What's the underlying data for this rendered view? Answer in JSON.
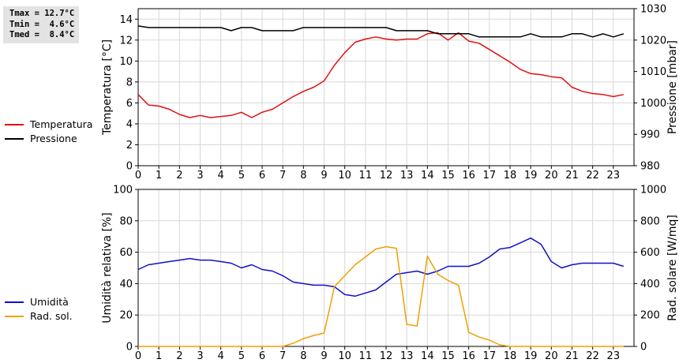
{
  "stats": [
    {
      "label": "Tmax =",
      "value": "12.7°C"
    },
    {
      "label": "Tmin =",
      "value": " 4.6°C"
    },
    {
      "label": "Tmed =",
      "value": " 8.4°C"
    }
  ],
  "colors": {
    "temperature": "#e01010",
    "pressure": "#000000",
    "humidity": "#1010c8",
    "solar": "#f0a000",
    "grid": "#d8d8d8"
  },
  "chart_data": [
    {
      "type": "line",
      "xlim": [
        0,
        24
      ],
      "x_ticks": [
        "0",
        "1",
        "2",
        "3",
        "4",
        "5",
        "6",
        "7",
        "8",
        "9",
        "10",
        "11",
        "12",
        "13",
        "14",
        "15",
        "16",
        "17",
        "18",
        "19",
        "20",
        "21",
        "22",
        "23"
      ],
      "ylabel_left": "Temperatura [°C]",
      "ylim_left": [
        0,
        15
      ],
      "yticks_left": [
        "0",
        "2",
        "4",
        "6",
        "8",
        "10",
        "12",
        "14"
      ],
      "ylabel_right": "Pressione [mbar]",
      "ylim_right": [
        980,
        1030
      ],
      "yticks_right": [
        "980",
        "990",
        "1000",
        "1010",
        "1020",
        "1030"
      ],
      "grid": true,
      "legend_placement": "left",
      "series": [
        {
          "name": "Temperatura",
          "axis": "left",
          "color": "#e01010",
          "x": [
            0,
            0.5,
            1,
            1.5,
            2,
            2.5,
            3,
            3.5,
            4,
            4.5,
            5,
            5.5,
            6,
            6.5,
            7,
            7.5,
            8,
            8.5,
            9,
            9.5,
            10,
            10.5,
            11,
            11.5,
            12,
            12.5,
            13,
            13.5,
            14,
            14.5,
            15,
            15.5,
            16,
            16.5,
            17,
            17.5,
            18,
            18.5,
            19,
            19.5,
            20,
            20.5,
            21,
            21.5,
            22,
            22.5,
            23,
            23.5
          ],
          "y": [
            6.8,
            5.8,
            5.7,
            5.4,
            4.9,
            4.6,
            4.8,
            4.6,
            4.7,
            4.8,
            5.1,
            4.6,
            5.1,
            5.4,
            6.0,
            6.6,
            7.1,
            7.5,
            8.1,
            9.6,
            10.8,
            11.8,
            12.1,
            12.3,
            12.1,
            12.0,
            12.1,
            12.1,
            12.6,
            12.7,
            12.0,
            12.7,
            11.9,
            11.7,
            11.1,
            10.5,
            9.9,
            9.2,
            8.8,
            8.7,
            8.5,
            8.4,
            7.5,
            7.1,
            6.9,
            6.8,
            6.6,
            6.8
          ]
        },
        {
          "name": "Pressione",
          "axis": "right",
          "color": "#000000",
          "x": [
            0,
            0.5,
            1,
            1.5,
            2,
            2.5,
            3,
            3.5,
            4,
            4.5,
            5,
            5.5,
            6,
            6.5,
            7,
            7.5,
            8,
            8.5,
            9,
            9.5,
            10,
            10.5,
            11,
            11.5,
            12,
            12.5,
            13,
            13.5,
            14,
            14.5,
            15,
            15.5,
            16,
            16.5,
            17,
            17.5,
            18,
            18.5,
            19,
            19.5,
            20,
            20.5,
            21,
            21.5,
            22,
            22.5,
            23,
            23.5
          ],
          "y": [
            1024.5,
            1024,
            1024,
            1024,
            1024,
            1024,
            1024,
            1024,
            1024,
            1023,
            1024,
            1024,
            1023,
            1023,
            1023,
            1023,
            1024,
            1024,
            1024,
            1024,
            1024,
            1024,
            1024,
            1024,
            1024,
            1023,
            1023,
            1023,
            1023,
            1022,
            1022,
            1022,
            1022,
            1021,
            1021,
            1021,
            1021,
            1021,
            1022,
            1021,
            1021,
            1021,
            1022,
            1022,
            1021,
            1022,
            1021,
            1022
          ]
        }
      ]
    },
    {
      "type": "line",
      "xlim": [
        0,
        24
      ],
      "x_ticks": [
        "0",
        "1",
        "2",
        "3",
        "4",
        "5",
        "6",
        "7",
        "8",
        "9",
        "10",
        "11",
        "12",
        "13",
        "14",
        "15",
        "16",
        "17",
        "18",
        "19",
        "20",
        "21",
        "22",
        "23"
      ],
      "ylabel_left": "Umidità relativa [%]",
      "ylim_left": [
        0,
        100
      ],
      "yticks_left": [
        "0",
        "20",
        "40",
        "60",
        "80",
        "100"
      ],
      "ylabel_right": "Rad. solare [W/mq]",
      "ylim_right": [
        0,
        1000
      ],
      "yticks_right": [
        "0",
        "200",
        "400",
        "600",
        "800",
        "1000"
      ],
      "grid": true,
      "legend_placement": "left",
      "series": [
        {
          "name": "Umidità",
          "axis": "left",
          "color": "#1010c8",
          "x": [
            0,
            0.5,
            1,
            1.5,
            2,
            2.5,
            3,
            3.5,
            4,
            4.5,
            5,
            5.5,
            6,
            6.5,
            7,
            7.5,
            8,
            8.5,
            9,
            9.5,
            10,
            10.5,
            11,
            11.5,
            12,
            12.5,
            13,
            13.5,
            14,
            14.5,
            15,
            15.5,
            16,
            16.5,
            17,
            17.5,
            18,
            18.5,
            19,
            19.5,
            20,
            20.5,
            21,
            21.5,
            22,
            22.5,
            23,
            23.5
          ],
          "y": [
            49,
            52,
            53,
            54,
            55,
            56,
            55,
            55,
            54,
            53,
            50,
            52,
            49,
            48,
            45,
            41,
            40,
            39,
            39,
            38,
            33,
            32,
            34,
            36,
            41,
            46,
            47,
            48,
            46,
            48,
            51,
            51,
            51,
            53,
            57,
            62,
            63,
            66,
            69,
            65,
            54,
            50,
            52,
            53,
            53,
            53,
            53,
            51
          ]
        },
        {
          "name": "Rad. sol.",
          "axis": "right",
          "color": "#f0a000",
          "x": [
            0,
            7,
            7.5,
            8,
            8.5,
            9,
            9.5,
            10,
            10.5,
            11,
            11.5,
            12,
            12.5,
            13,
            13.5,
            14,
            14.5,
            15,
            15.5,
            16,
            16.5,
            17,
            17.5,
            18,
            23.5
          ],
          "y": [
            0,
            0,
            20,
            50,
            70,
            85,
            380,
            450,
            520,
            570,
            620,
            635,
            625,
            140,
            130,
            575,
            460,
            420,
            390,
            90,
            60,
            40,
            10,
            0,
            0
          ]
        }
      ]
    }
  ]
}
